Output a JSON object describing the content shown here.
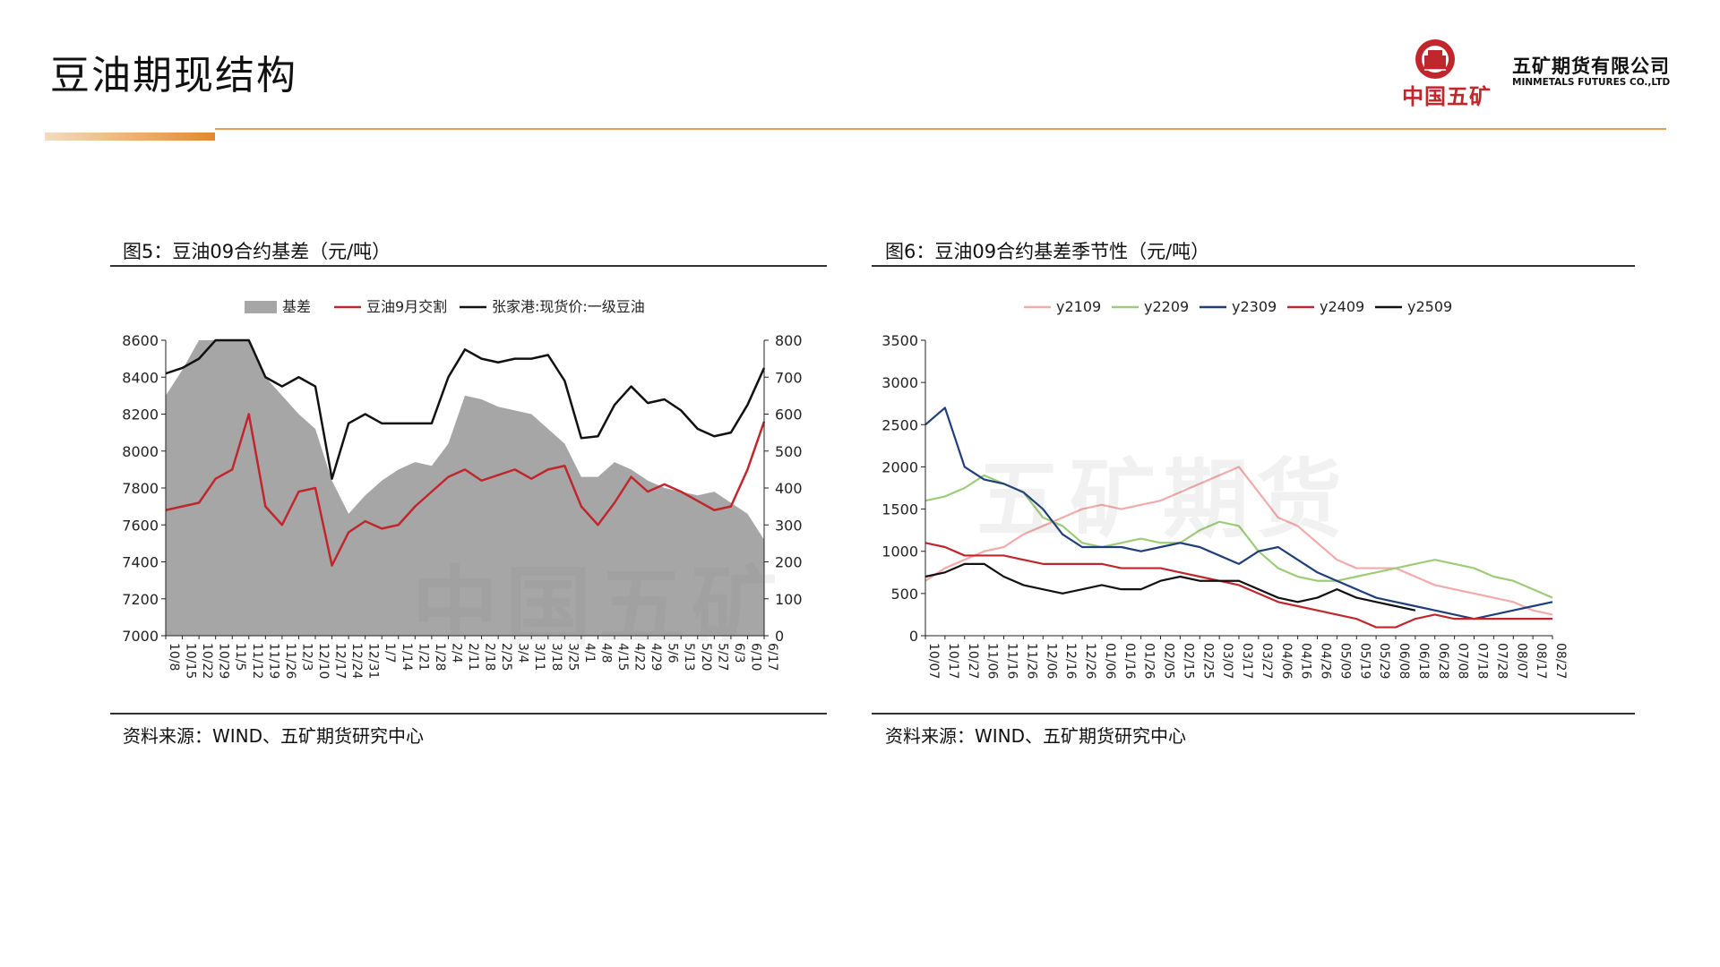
{
  "header": {
    "title": "豆油期现结构",
    "logo_text_cn": "中国五矿",
    "company_name": "五矿期货有限公司",
    "company_name_en": "MINMETALS FUTURES CO.,LTD"
  },
  "watermark": {
    "text1": "中国五矿",
    "text2": "五矿期货"
  },
  "charts": [
    {
      "title": "图5：豆油09合约基差（元/吨）",
      "source": "资料来源：WIND、五矿期货研究中心"
    },
    {
      "title": "图6：豆油09合约基差季节性（元/吨）",
      "source": "资料来源：WIND、五矿期货研究中心"
    }
  ],
  "chart_data": [
    {
      "type": "area+line",
      "title": "图5：豆油09合约基差（元/吨）",
      "legend": [
        "基差",
        "豆油9月交割",
        "张家港:现货价:一级豆油"
      ],
      "categories": [
        "10/8",
        "10/15",
        "10/22",
        "10/29",
        "11/5",
        "11/12",
        "11/19",
        "11/26",
        "12/3",
        "12/10",
        "12/17",
        "12/24",
        "12/31",
        "1/7",
        "1/14",
        "1/21",
        "1/28",
        "2/4",
        "2/11",
        "2/18",
        "2/25",
        "3/4",
        "3/11",
        "3/18",
        "3/25",
        "4/1",
        "4/8",
        "4/15",
        "4/22",
        "4/29",
        "5/6",
        "5/13",
        "5/20",
        "5/27",
        "6/3",
        "6/10",
        "6/17"
      ],
      "yticks_left": [
        "7000",
        "7200",
        "7400",
        "7600",
        "7800",
        "8000",
        "8200",
        "8400",
        "8600"
      ],
      "yticks_right": [
        "0",
        "100",
        "200",
        "300",
        "400",
        "500",
        "600",
        "700",
        "800"
      ],
      "ylim_left": [
        7000,
        8600
      ],
      "ylim_right": [
        0,
        800
      ],
      "series": [
        {
          "name": "基差",
          "axis": "right",
          "color": "#a6a6a6",
          "values": [
            650,
            720,
            850,
            800,
            800,
            800,
            700,
            650,
            600,
            560,
            420,
            330,
            380,
            420,
            450,
            470,
            460,
            520,
            650,
            640,
            620,
            610,
            600,
            560,
            520,
            430,
            430,
            470,
            450,
            420,
            400,
            390,
            380,
            390,
            360,
            330,
            260
          ]
        },
        {
          "name": "豆油9月交割",
          "axis": "left",
          "color": "#c0272d",
          "values": [
            7680,
            7700,
            7720,
            7850,
            7900,
            8200,
            7700,
            7600,
            7780,
            7800,
            7380,
            7560,
            7620,
            7580,
            7600,
            7700,
            7780,
            7860,
            7900,
            7840,
            7870,
            7900,
            7850,
            7900,
            7920,
            7700,
            7600,
            7720,
            7860,
            7780,
            7820,
            7780,
            7730,
            7680,
            7700,
            7900,
            8160
          ]
        },
        {
          "name": "张家港:现货价:一级豆油",
          "axis": "left",
          "color": "#111111",
          "values": [
            8420,
            8450,
            8500,
            8650,
            8650,
            8650,
            8400,
            8350,
            8400,
            8350,
            7850,
            8150,
            8200,
            8150,
            8150,
            8150,
            8150,
            8400,
            8550,
            8500,
            8480,
            8500,
            8500,
            8520,
            8380,
            8070,
            8080,
            8250,
            8350,
            8260,
            8280,
            8220,
            8120,
            8080,
            8100,
            8250,
            8450
          ]
        }
      ]
    },
    {
      "type": "line",
      "title": "图6：豆油09合约基差季节性（元/吨）",
      "legend": [
        "y2109",
        "y2209",
        "y2309",
        "y2409",
        "y2509"
      ],
      "categories": [
        "10/07",
        "10/17",
        "10/27",
        "11/06",
        "11/16",
        "11/26",
        "12/06",
        "12/16",
        "12/26",
        "01/06",
        "01/16",
        "01/26",
        "02/05",
        "02/15",
        "02/25",
        "03/07",
        "03/17",
        "03/27",
        "04/06",
        "04/16",
        "04/26",
        "05/09",
        "05/19",
        "05/29",
        "06/08",
        "06/18",
        "06/28",
        "07/08",
        "07/18",
        "07/28",
        "08/07",
        "08/17",
        "08/27"
      ],
      "yticks": [
        "0",
        "500",
        "1000",
        "1500",
        "2000",
        "2500",
        "3000",
        "3500"
      ],
      "ylim": [
        0,
        3500
      ],
      "series": [
        {
          "name": "y2109",
          "color": "#f2aaaa",
          "values": [
            650,
            800,
            900,
            1000,
            1050,
            1200,
            1300,
            1400,
            1500,
            1550,
            1500,
            1550,
            1600,
            1700,
            1800,
            1900,
            2000,
            1700,
            1400,
            1300,
            1100,
            900,
            800,
            800,
            800,
            700,
            600,
            550,
            500,
            450,
            400,
            300,
            250
          ]
        },
        {
          "name": "y2209",
          "color": "#9dcc78",
          "values": [
            1600,
            1650,
            1750,
            1900,
            1800,
            1700,
            1400,
            1300,
            1100,
            1050,
            1100,
            1150,
            1100,
            1100,
            1250,
            1350,
            1300,
            1000,
            800,
            700,
            650,
            650,
            700,
            750,
            800,
            850,
            900,
            850,
            800,
            700,
            650,
            550,
            450
          ]
        },
        {
          "name": "y2309",
          "color": "#1f3f7a",
          "values": [
            2500,
            2700,
            2000,
            1850,
            1800,
            1700,
            1500,
            1200,
            1050,
            1050,
            1050,
            1000,
            1050,
            1100,
            1050,
            950,
            850,
            1000,
            1050,
            900,
            750,
            650,
            550,
            450,
            400,
            350,
            300,
            250,
            200,
            250,
            300,
            350,
            400
          ]
        },
        {
          "name": "y2409",
          "color": "#c0272d",
          "values": [
            1100,
            1050,
            950,
            950,
            950,
            900,
            850,
            850,
            850,
            850,
            800,
            800,
            800,
            750,
            700,
            650,
            600,
            500,
            400,
            350,
            300,
            250,
            200,
            100,
            100,
            200,
            250,
            200,
            200,
            200,
            200,
            200,
            200
          ]
        },
        {
          "name": "y2509",
          "color": "#111111",
          "values": [
            700,
            750,
            850,
            850,
            700,
            600,
            550,
            500,
            550,
            600,
            550,
            550,
            650,
            700,
            650,
            650,
            650,
            550,
            450,
            400,
            450,
            550,
            450,
            400,
            350,
            300,
            null,
            null,
            null,
            null,
            null,
            null,
            null
          ]
        }
      ]
    }
  ]
}
